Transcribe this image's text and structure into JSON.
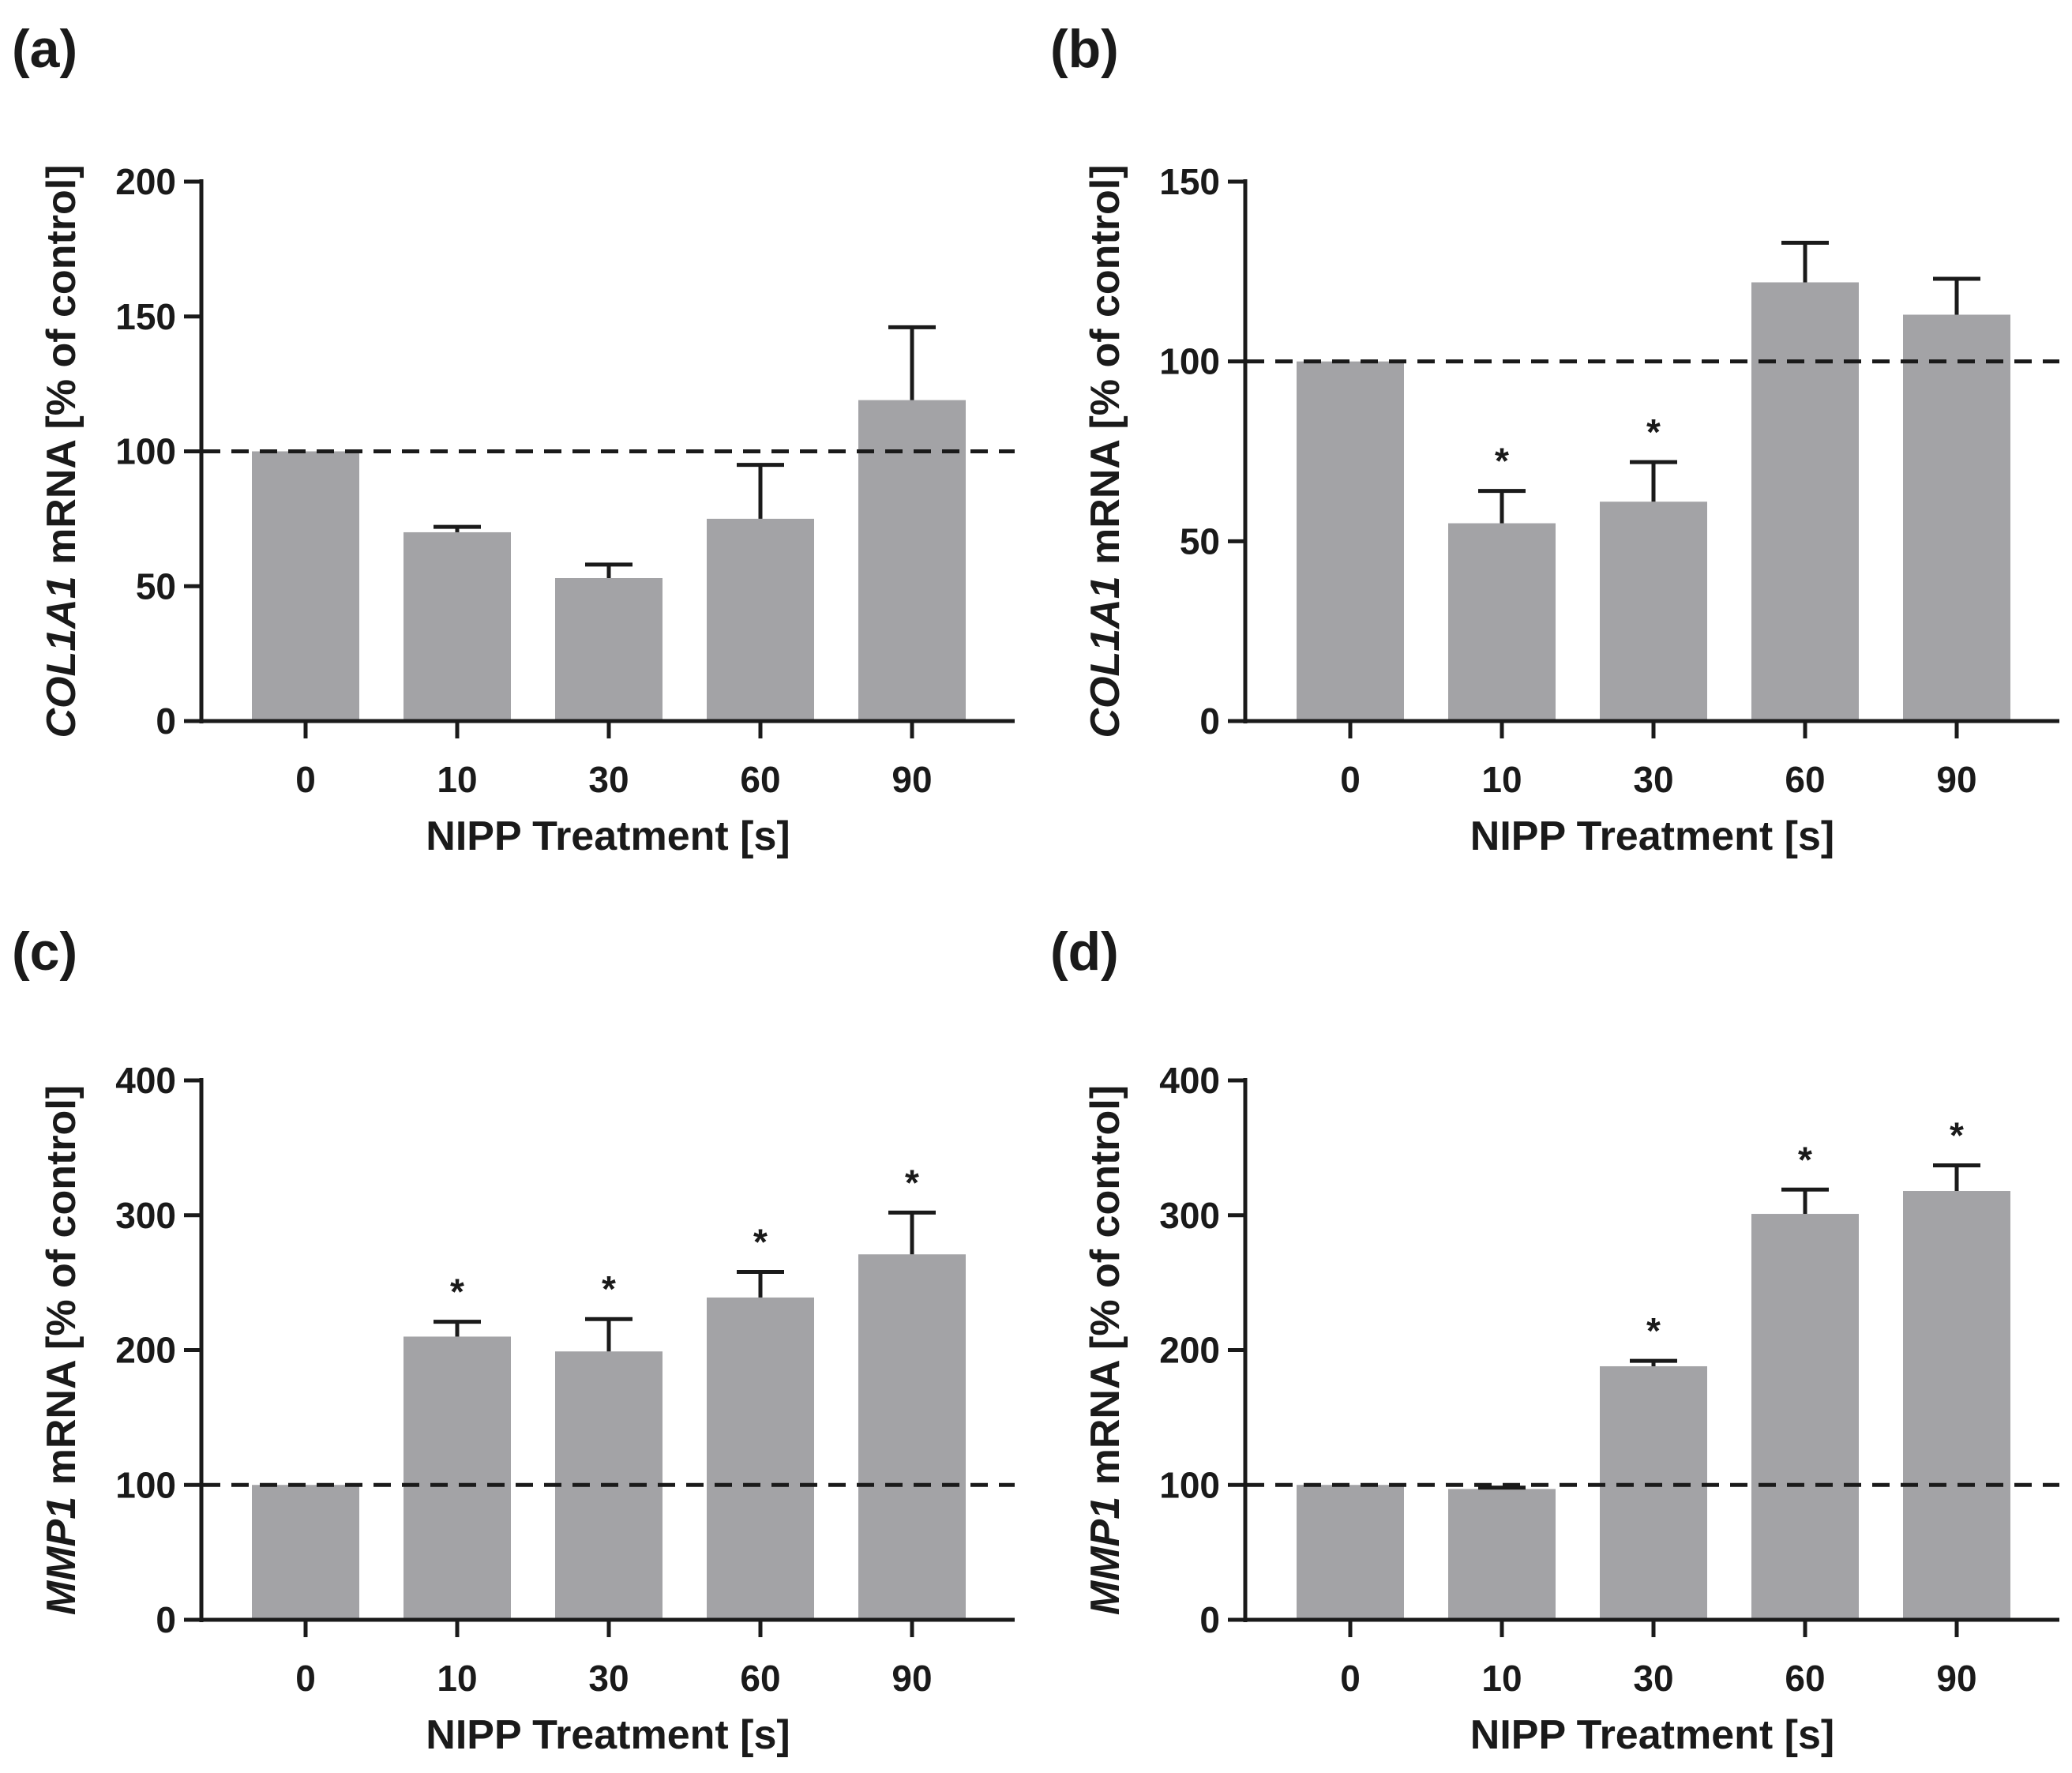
{
  "chart_data": [
    {
      "panel": "(a)",
      "type": "bar",
      "categories": [
        "0",
        "10",
        "30",
        "60",
        "90"
      ],
      "values": [
        100,
        70,
        53,
        75,
        119
      ],
      "errors": [
        0,
        2,
        5,
        20,
        27
      ],
      "significant": [
        false,
        false,
        false,
        false,
        false
      ],
      "xlabel": "NIPP Treatment [s]",
      "ylabel_gene": "COL1A1",
      "ylabel_rest": " mRNA [% of control]",
      "ylim": [
        0,
        200
      ],
      "yticks": [
        0,
        50,
        100,
        150,
        200
      ],
      "reference_line": 100,
      "bar_color": "#a3a3a6"
    },
    {
      "panel": "(b)",
      "type": "bar",
      "categories": [
        "0",
        "10",
        "30",
        "60",
        "90"
      ],
      "values": [
        100,
        55,
        61,
        122,
        113
      ],
      "errors": [
        0,
        9,
        11,
        11,
        10
      ],
      "significant": [
        false,
        true,
        true,
        false,
        false
      ],
      "xlabel": "NIPP Treatment [s]",
      "ylabel_gene": "COL1A1",
      "ylabel_rest": " mRNA [% of control]",
      "ylim": [
        0,
        150
      ],
      "yticks": [
        0,
        50,
        100,
        150
      ],
      "reference_line": 100,
      "bar_color": "#a3a3a6"
    },
    {
      "panel": "(c)",
      "type": "bar",
      "categories": [
        "0",
        "10",
        "30",
        "60",
        "90"
      ],
      "values": [
        100,
        210,
        199,
        239,
        271
      ],
      "errors": [
        0,
        11,
        24,
        19,
        31
      ],
      "significant": [
        false,
        true,
        true,
        true,
        true
      ],
      "xlabel": "NIPP Treatment [s]",
      "ylabel_gene": "MMP1",
      "ylabel_rest": " mRNA [% of control]",
      "ylim": [
        0,
        400
      ],
      "yticks": [
        0,
        100,
        200,
        300,
        400
      ],
      "reference_line": 100,
      "bar_color": "#a3a3a6"
    },
    {
      "panel": "(d)",
      "type": "bar",
      "categories": [
        "0",
        "10",
        "30",
        "60",
        "90"
      ],
      "values": [
        100,
        97,
        188,
        301,
        318
      ],
      "errors": [
        0,
        1,
        4,
        18,
        19
      ],
      "significant": [
        false,
        false,
        true,
        true,
        true
      ],
      "xlabel": "NIPP Treatment [s]",
      "ylabel_gene": "MMP1",
      "ylabel_rest": " mRNA [% of control]",
      "ylim": [
        0,
        400
      ],
      "yticks": [
        0,
        100,
        200,
        300,
        400
      ],
      "reference_line": 100,
      "bar_color": "#a3a3a6"
    }
  ],
  "significance_marker": "*"
}
